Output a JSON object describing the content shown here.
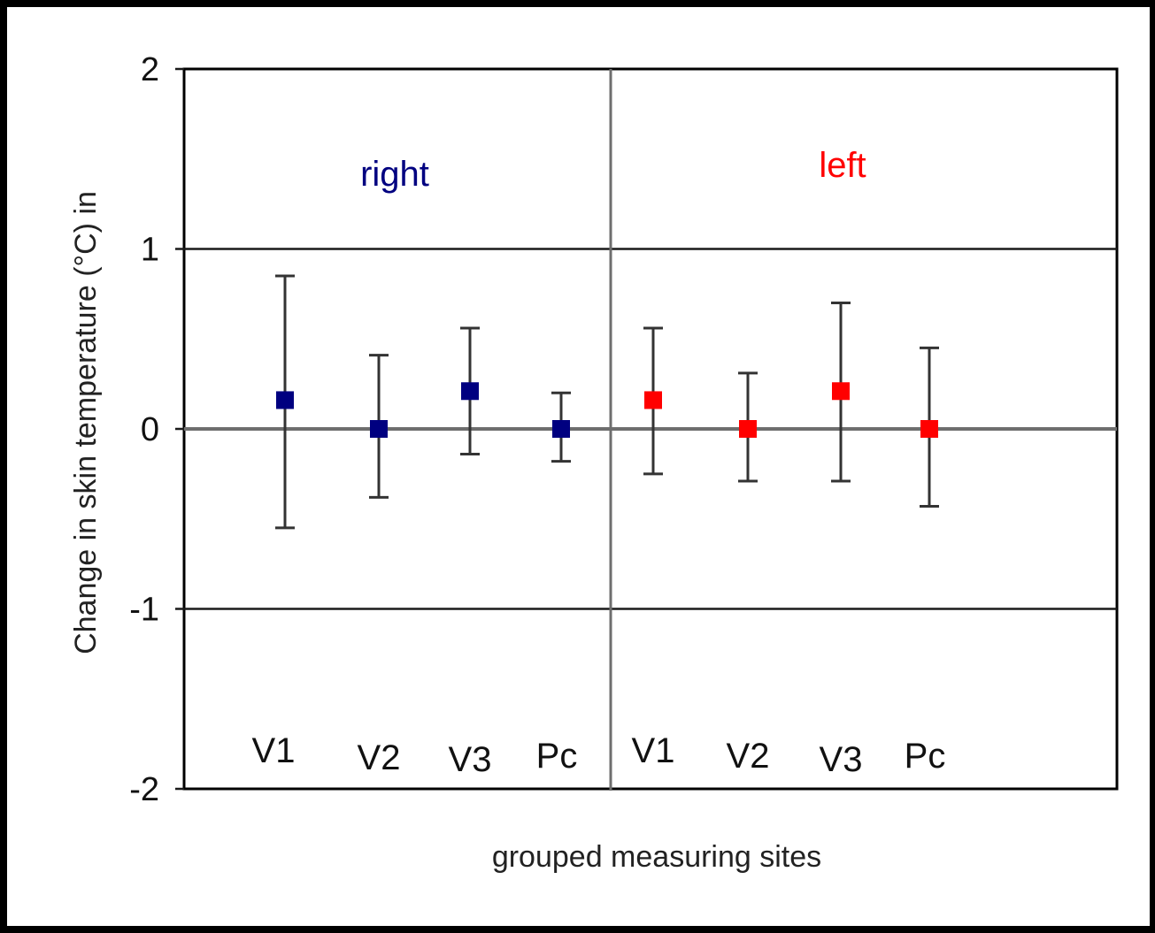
{
  "chart_data": {
    "type": "scatter",
    "ylabel": "Change in skin temperature (°C) in",
    "xlabel": "grouped measuring sites",
    "ylim": [
      -2,
      2
    ],
    "yticks": [
      2,
      1,
      0,
      -1,
      -2
    ],
    "yticklabels": [
      "2",
      "1",
      "0",
      "-1",
      "-2"
    ],
    "grid": true,
    "groups": [
      {
        "label": "right",
        "color": "#000080",
        "categories": [
          "V1",
          "V2",
          "V3",
          "Pc"
        ],
        "values": [
          0.16,
          0.0,
          0.21,
          0.0
        ],
        "error_low": [
          -0.55,
          -0.38,
          -0.14,
          -0.18
        ],
        "error_high": [
          0.85,
          0.41,
          0.56,
          0.2
        ]
      },
      {
        "label": "left",
        "color": "#ff0000",
        "categories": [
          "V1",
          "V2",
          "V3",
          "Pc"
        ],
        "values": [
          0.16,
          0.0,
          0.21,
          0.0
        ],
        "error_low": [
          -0.25,
          -0.29,
          -0.29,
          -0.43
        ],
        "error_high": [
          0.56,
          0.31,
          0.7,
          0.45
        ]
      }
    ]
  }
}
